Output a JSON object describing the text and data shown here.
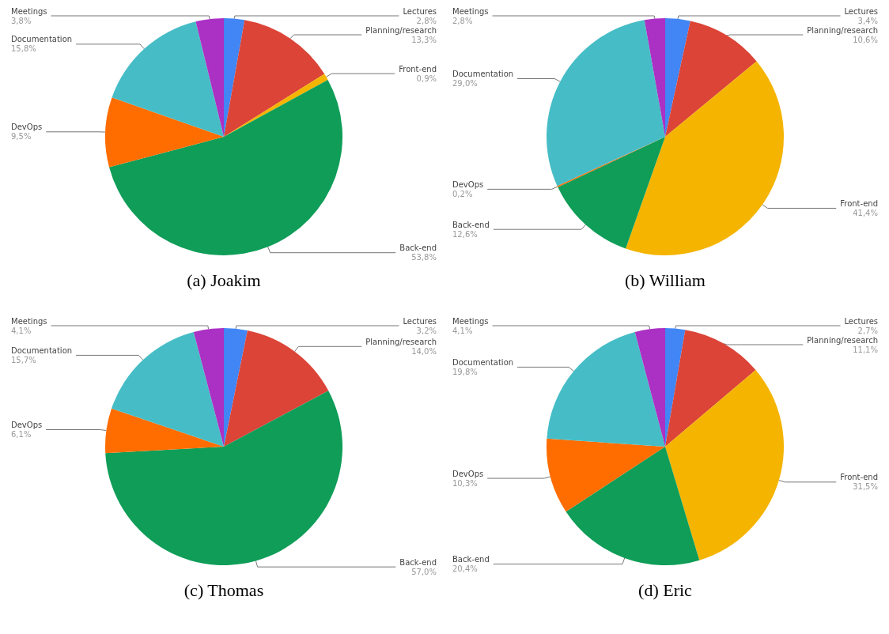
{
  "chart_data": [
    {
      "type": "pie",
      "title": "(a) Joakim",
      "categories": [
        "Lectures",
        "Planning/research",
        "Front-end",
        "Back-end",
        "DevOps",
        "Documentation",
        "Meetings"
      ],
      "values": [
        2.8,
        13.3,
        0.9,
        53.8,
        9.5,
        15.8,
        3.8
      ],
      "value_labels": [
        "2,8%",
        "13,3%",
        "0,9%",
        "53,8%",
        "9,5%",
        "15,8%",
        "3,8%"
      ],
      "colors": [
        "#4285f4",
        "#db4437",
        "#f4b400",
        "#0f9d58",
        "#ff6d00",
        "#46bdc6",
        "#ab30c4"
      ],
      "legend": false
    },
    {
      "type": "pie",
      "title": "(b) William",
      "categories": [
        "Lectures",
        "Planning/research",
        "Front-end",
        "Back-end",
        "DevOps",
        "Documentation",
        "Meetings"
      ],
      "values": [
        3.4,
        10.6,
        41.4,
        12.6,
        0.2,
        29.0,
        2.8
      ],
      "value_labels": [
        "3,4%",
        "10,6%",
        "41,4%",
        "12,6%",
        "0,2%",
        "29,0%",
        "2,8%"
      ],
      "colors": [
        "#4285f4",
        "#db4437",
        "#f4b400",
        "#0f9d58",
        "#ff6d00",
        "#46bdc6",
        "#ab30c4"
      ],
      "legend": false
    },
    {
      "type": "pie",
      "title": "(c) Thomas",
      "categories": [
        "Lectures",
        "Planning/research",
        "Back-end",
        "DevOps",
        "Documentation",
        "Meetings"
      ],
      "values": [
        3.2,
        14.0,
        57.0,
        6.1,
        15.7,
        4.1
      ],
      "value_labels": [
        "3,2%",
        "14,0%",
        "57,0%",
        "6,1%",
        "15,7%",
        "4,1%"
      ],
      "colors": [
        "#4285f4",
        "#db4437",
        "#0f9d58",
        "#ff6d00",
        "#46bdc6",
        "#ab30c4"
      ],
      "legend": false
    },
    {
      "type": "pie",
      "title": "(d) Eric",
      "categories": [
        "Lectures",
        "Planning/research",
        "Front-end",
        "Back-end",
        "DevOps",
        "Documentation",
        "Meetings"
      ],
      "values": [
        2.7,
        11.1,
        31.5,
        20.4,
        10.3,
        19.8,
        4.1
      ],
      "value_labels": [
        "2,7%",
        "11,1%",
        "31,5%",
        "20,4%",
        "10,3%",
        "19,8%",
        "4,1%"
      ],
      "colors": [
        "#4285f4",
        "#db4437",
        "#f4b400",
        "#0f9d58",
        "#ff6d00",
        "#46bdc6",
        "#ab30c4"
      ],
      "legend": false
    }
  ]
}
